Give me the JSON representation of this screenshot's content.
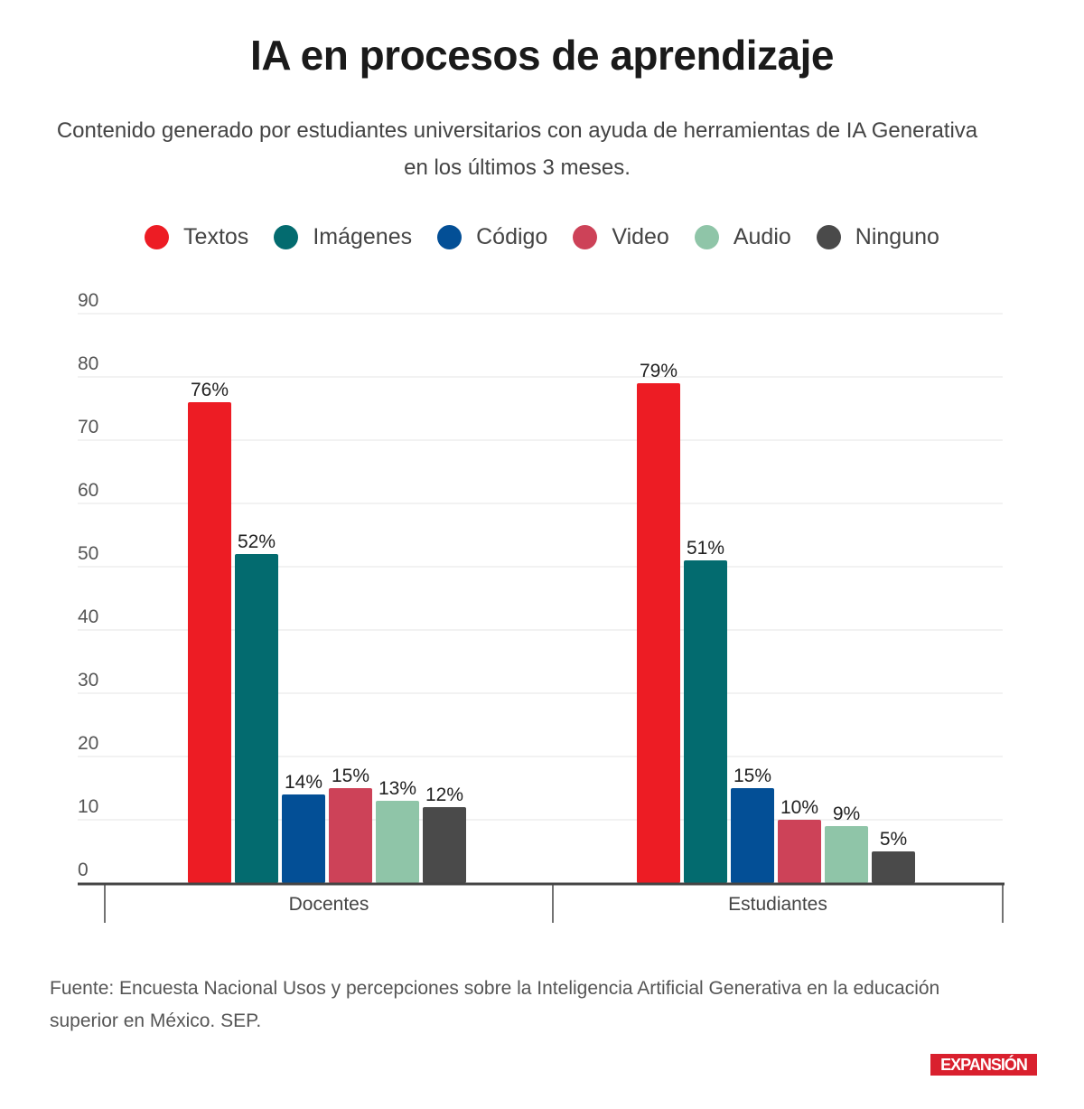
{
  "header": {
    "title": "IA en procesos de aprendizaje",
    "subtitle": "Contenido generado por estudiantes universitarios con ayuda de herramientas de IA Generativa en los últimos 3 meses."
  },
  "footer": {
    "source": "Fuente: Encuesta Nacional Usos y percepciones sobre la Inteligencia Artificial Generativa en la educación superior en México. SEP.",
    "brand": "EXPANSIÓN",
    "brand_color": "#d9202e"
  },
  "chart_data": {
    "type": "bar",
    "title": "IA en procesos de aprendizaje",
    "subtitle": "Contenido generado por estudiantes universitarios con ayuda de herramientas de IA Generativa en los últimos 3 meses.",
    "xlabel": "",
    "ylabel": "",
    "ylim": [
      0,
      90
    ],
    "yticks": [
      0,
      10,
      20,
      30,
      40,
      50,
      60,
      70,
      80,
      90
    ],
    "grid": true,
    "legend_position": "top-center",
    "categories": [
      "Docentes",
      "Estudiantes"
    ],
    "value_suffix": "%",
    "series": [
      {
        "name": "Textos",
        "color": "#ed1c24",
        "values": [
          76,
          79
        ]
      },
      {
        "name": "Imágenes",
        "color": "#036b6f",
        "values": [
          52,
          51
        ]
      },
      {
        "name": "Código",
        "color": "#034f96",
        "values": [
          14,
          15
        ]
      },
      {
        "name": "Video",
        "color": "#cd4258",
        "values": [
          15,
          10
        ]
      },
      {
        "name": "Audio",
        "color": "#8fc5a8",
        "values": [
          13,
          9
        ]
      },
      {
        "name": "Ninguno",
        "color": "#4a4a4a",
        "values": [
          12,
          5
        ]
      }
    ]
  }
}
